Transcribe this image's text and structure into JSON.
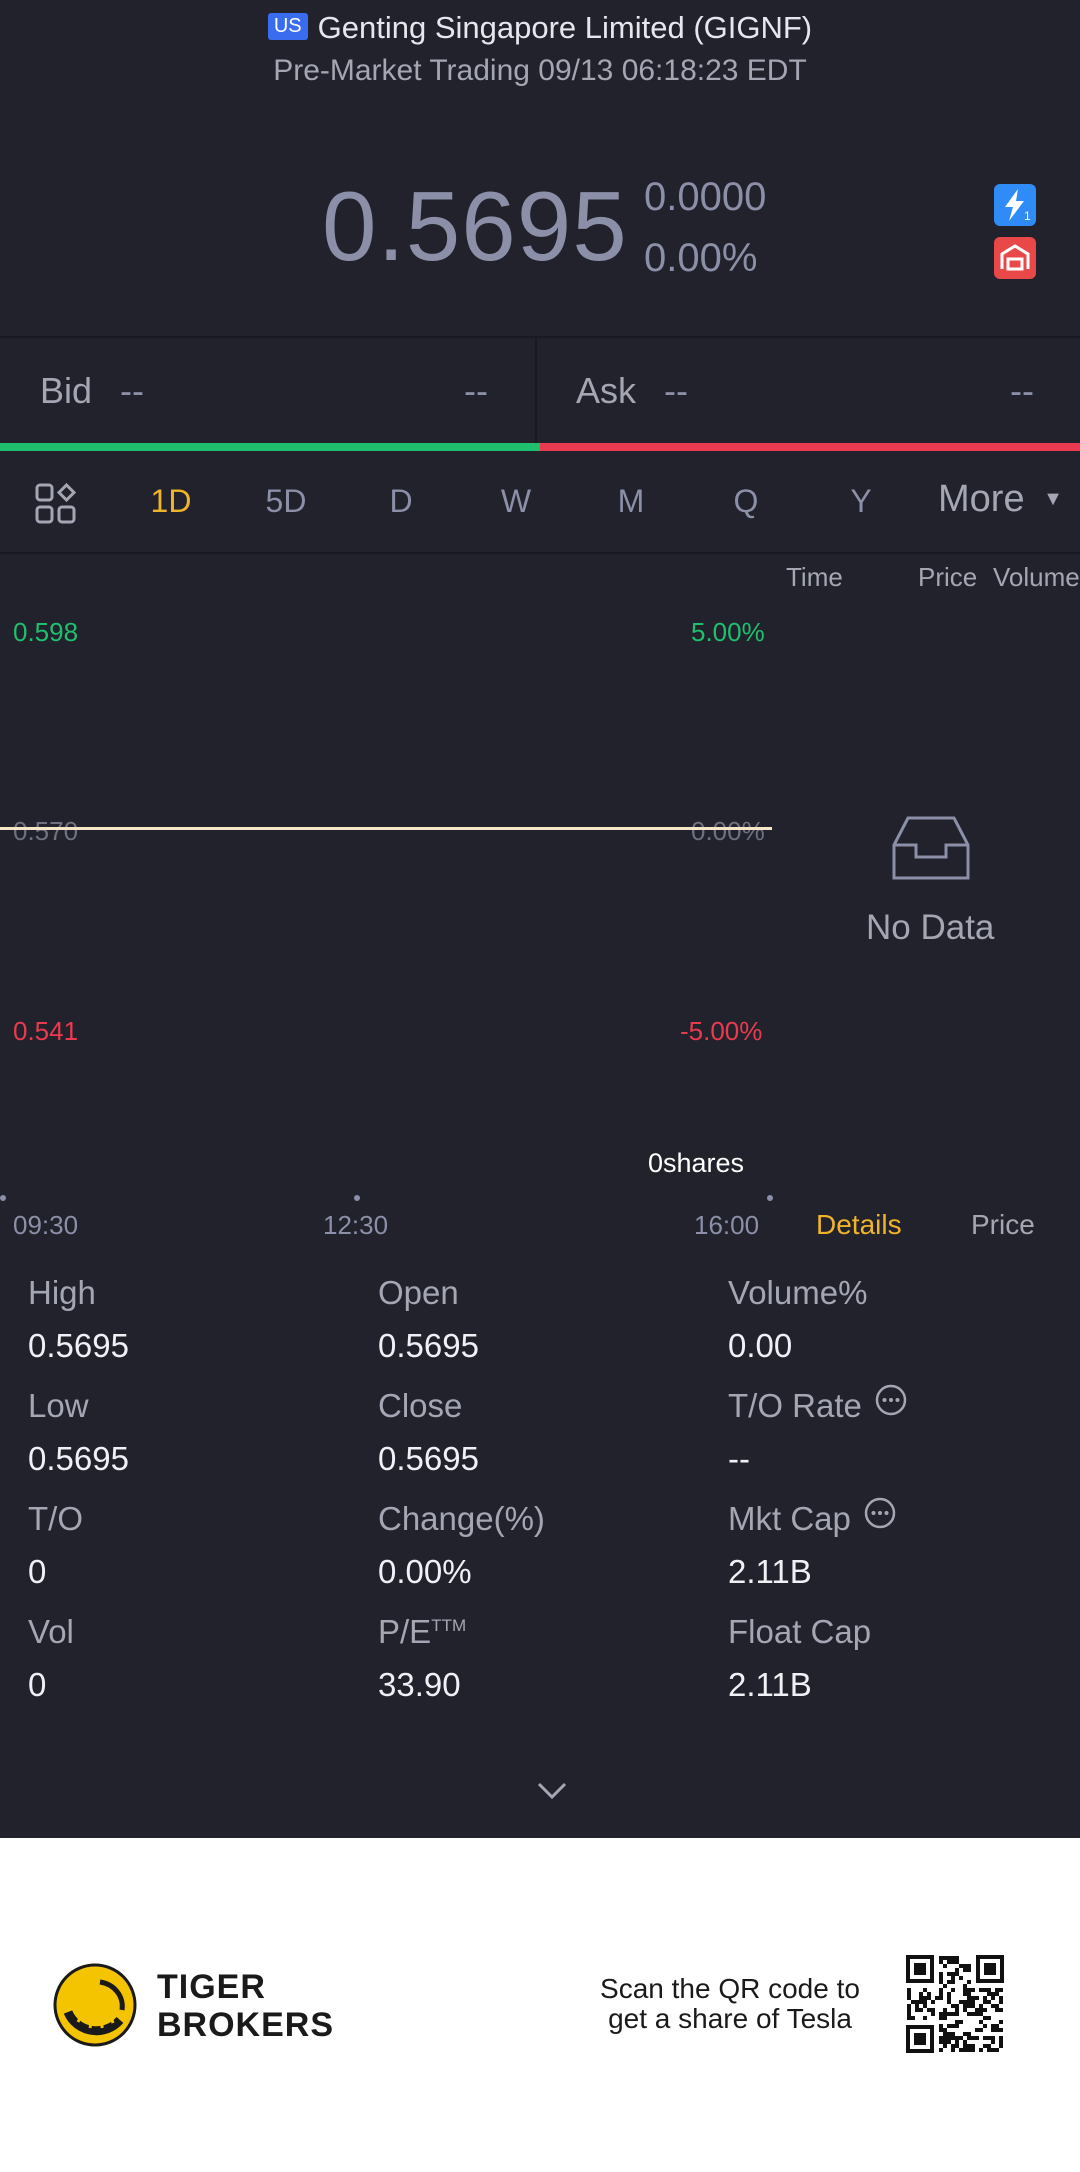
{
  "header": {
    "market_badge": "US",
    "title": "Genting Singapore Limited (GIGNF)",
    "subtitle": "Pre-Market Trading 09/13 06:18:23 EDT"
  },
  "quote": {
    "price": "0.5695",
    "change": "0.0000",
    "change_pct": "0.00%"
  },
  "bid_ask": {
    "bid_label": "Bid",
    "bid_price": "--",
    "bid_size": "--",
    "ask_label": "Ask",
    "ask_price": "--",
    "ask_size": "--",
    "bid_ratio": 0.5
  },
  "period_tabs": [
    "1D",
    "5D",
    "D",
    "W",
    "M",
    "Q",
    "Y"
  ],
  "more_label": "More",
  "chart": {
    "y_high": "0.598",
    "y_mid": "0.570",
    "y_low": "0.541",
    "pct_high": "5.00%",
    "pct_mid": "0.00%",
    "pct_low": "-5.00%",
    "volume_label": "0shares",
    "time_start": "09:30",
    "time_mid": "12:30",
    "time_end": "16:00"
  },
  "trades_panel": {
    "col_time": "Time",
    "col_price": "Price",
    "col_volume": "Volume",
    "empty": "No Data",
    "tab_details": "Details",
    "tab_price": "Price"
  },
  "stats": {
    "high_label": "High",
    "high": "0.5695",
    "open_label": "Open",
    "open": "0.5695",
    "volpct_label": "Volume%",
    "volpct": "0.00",
    "low_label": "Low",
    "low": "0.5695",
    "close_label": "Close",
    "close": "0.5695",
    "torate_label": "T/O Rate",
    "torate": "--",
    "to_label": "T/O",
    "to": "0",
    "change_label": "Change(%)",
    "change": "0.00%",
    "mktcap_label": "Mkt Cap",
    "mktcap": "2.11B",
    "vol_label": "Vol",
    "vol": "0",
    "pe_label": "P/E",
    "pe_sup": "TTM",
    "pe": "33.90",
    "floatcap_label": "Float Cap",
    "floatcap": "2.11B"
  },
  "footer": {
    "brand_line1": "TIGER",
    "brand_line2": "BROKERS",
    "promo_line1": "Scan the QR code to",
    "promo_line2": "get a share of Tesla"
  },
  "colors": {
    "background": "#21222b",
    "up": "#1fbf6e",
    "down": "#ea3a4f",
    "accent": "#f0b429"
  }
}
